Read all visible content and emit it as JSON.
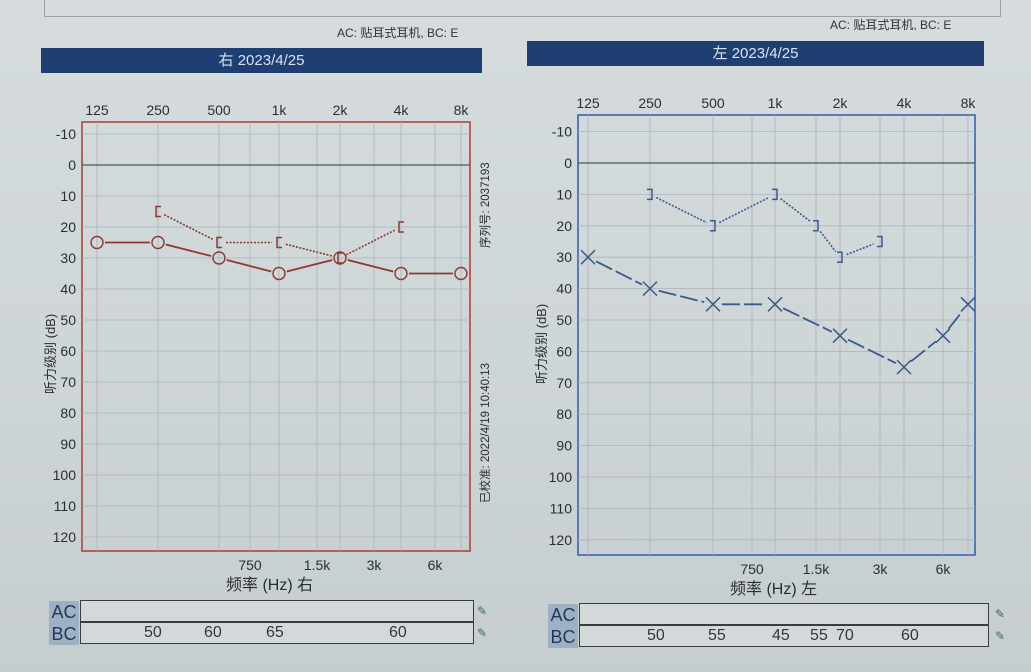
{
  "header": {
    "transducer_note_right": "AC: 贴耳式耳机, BC: E",
    "transducer_note_left": "AC: 贴耳式耳机, BC: E"
  },
  "right_ear": {
    "banner": "右 2023/4/25",
    "x_axis_label": "频率 (Hz) 右",
    "y_axis_label": "听力级别 (dB)",
    "serial": "序列号: 2037193",
    "calibrated": "已校准: 2022/4/19 10:40:13",
    "table": {
      "ac_label": "AC",
      "bc_label": "BC",
      "ac_values": [],
      "bc_values": [
        {
          "freq": "250",
          "value": "50"
        },
        {
          "freq": "500",
          "value": "60"
        },
        {
          "freq": "1k",
          "value": "65"
        },
        {
          "freq": "4k",
          "value": "60"
        }
      ]
    }
  },
  "left_ear": {
    "banner": "左 2023/4/25",
    "x_axis_label": "频率 (Hz) 左",
    "y_axis_label": "听力级别 (dB)",
    "table": {
      "ac_label": "AC",
      "bc_label": "BC",
      "ac_values": [],
      "bc_values": [
        {
          "freq": "250",
          "value": "50"
        },
        {
          "freq": "500",
          "value": "55"
        },
        {
          "freq": "1k",
          "value": "45"
        },
        {
          "freq": "1.5k",
          "value": "55"
        },
        {
          "freq": "2k",
          "value": "70"
        },
        {
          "freq": "4k",
          "value": "60"
        }
      ]
    }
  },
  "colors": {
    "banner": "#1f3f73",
    "right_series": "#8a3a30",
    "left_series": "#3a5a8c",
    "right_border": "#a8483c",
    "left_border": "#3a66a8",
    "grid": "#aab3b7"
  },
  "chart_data": [
    {
      "type": "line",
      "title": "右 2023/4/25",
      "xlabel": "频率 (Hz) 右",
      "ylabel": "听力级别 (dB)",
      "x_ticks_top": [
        "125",
        "250",
        "500",
        "1k",
        "2k",
        "4k",
        "8k"
      ],
      "x_ticks_bottom": [
        "750",
        "1.5k",
        "3k",
        "6k"
      ],
      "y_ticks": [
        -10,
        0,
        10,
        20,
        30,
        40,
        50,
        60,
        70,
        80,
        90,
        100,
        110,
        120
      ],
      "ylim": [
        -15,
        125
      ],
      "y_inverted": true,
      "grid": true,
      "series": [
        {
          "name": "AC (右, O)",
          "marker": "circle",
          "line": "solid",
          "x": [
            "125",
            "250",
            "500",
            "1k",
            "2k",
            "4k",
            "8k"
          ],
          "values": [
            25,
            25,
            30,
            35,
            30,
            35,
            35
          ]
        },
        {
          "name": "BC (右, [)",
          "marker": "bracket-left",
          "line": "dotted",
          "x": [
            "250",
            "500",
            "1k",
            "2k",
            "4k"
          ],
          "values": [
            15,
            25,
            25,
            30,
            20
          ]
        }
      ]
    },
    {
      "type": "line",
      "title": "左 2023/4/25",
      "xlabel": "频率 (Hz) 左",
      "ylabel": "听力级别 (dB)",
      "x_ticks_top": [
        "125",
        "250",
        "500",
        "1k",
        "2k",
        "4k",
        "8k"
      ],
      "x_ticks_bottom": [
        "750",
        "1.5k",
        "3k",
        "6k"
      ],
      "y_ticks": [
        -10,
        0,
        10,
        20,
        30,
        40,
        50,
        60,
        70,
        80,
        90,
        100,
        110,
        120
      ],
      "ylim": [
        -15,
        125
      ],
      "y_inverted": true,
      "grid": true,
      "series": [
        {
          "name": "AC (左, X)",
          "marker": "x",
          "line": "solid",
          "x": [
            "125",
            "250",
            "500",
            "1k",
            "2k",
            "4k",
            "6k",
            "8k"
          ],
          "values": [
            30,
            40,
            45,
            45,
            55,
            65,
            55,
            45
          ]
        },
        {
          "name": "BC (左, ])",
          "marker": "bracket-right",
          "line": "dotted",
          "x": [
            "250",
            "500",
            "1k",
            "1.5k",
            "2k",
            "3k"
          ],
          "values": [
            10,
            20,
            10,
            20,
            30,
            25
          ]
        }
      ]
    }
  ]
}
